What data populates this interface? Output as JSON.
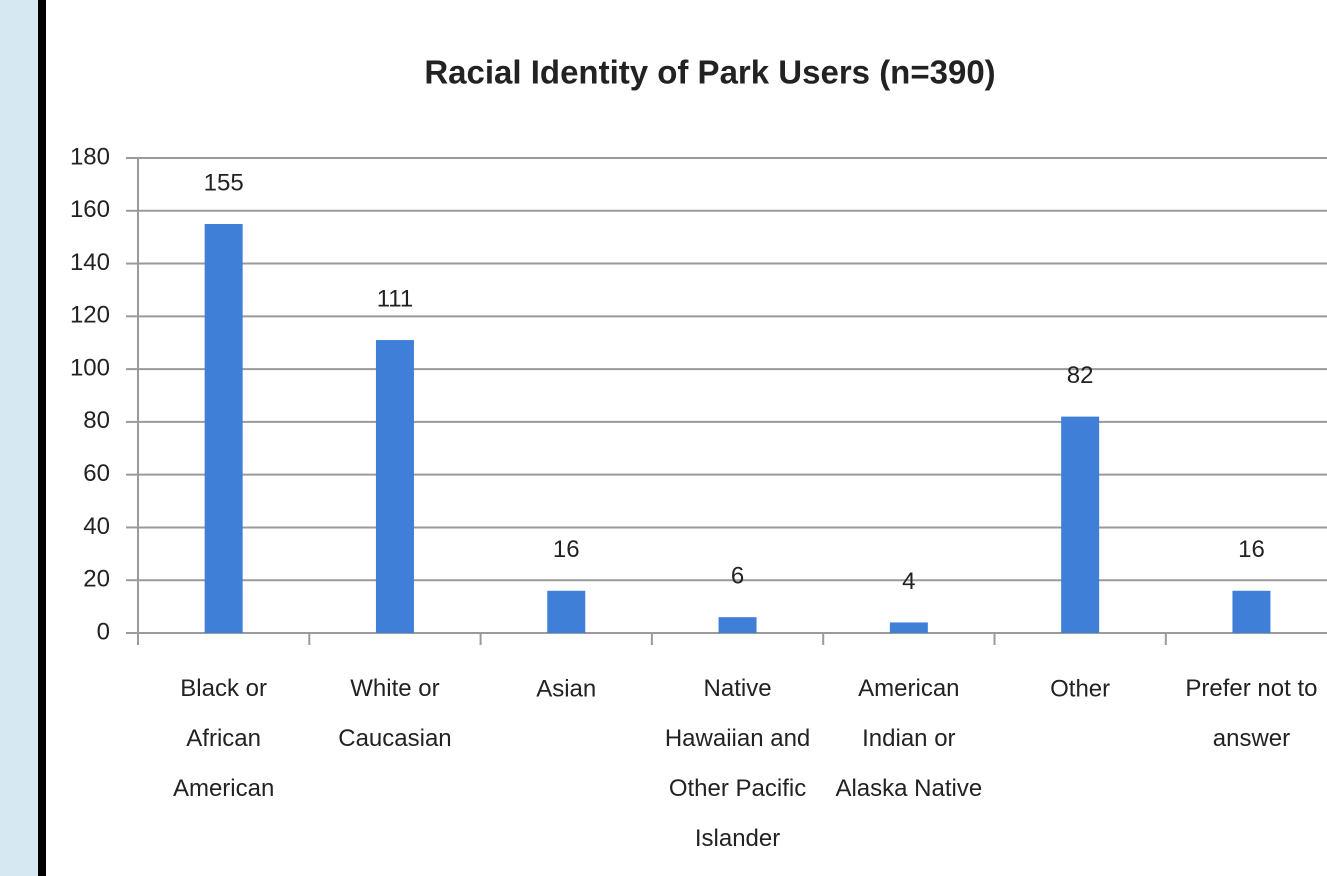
{
  "chart_data": {
    "type": "bar",
    "title": "Racial Identity of Park Users (n=390)",
    "categories": [
      "Black or\nAfrican\nAmerican",
      "White or\nCaucasian",
      "Asian",
      "Native\nHawaiian and\nOther Pacific\nIslander",
      "American\nIndian or\nAlaska Native",
      "Other",
      "Prefer not to\nanswer"
    ],
    "values": [
      155,
      111,
      16,
      6,
      4,
      82,
      16
    ],
    "color": "#3f7fd8",
    "ylim": [
      0,
      180
    ],
    "yticks": [
      0,
      20,
      40,
      60,
      80,
      100,
      120,
      140,
      160,
      180
    ],
    "grid": true
  }
}
